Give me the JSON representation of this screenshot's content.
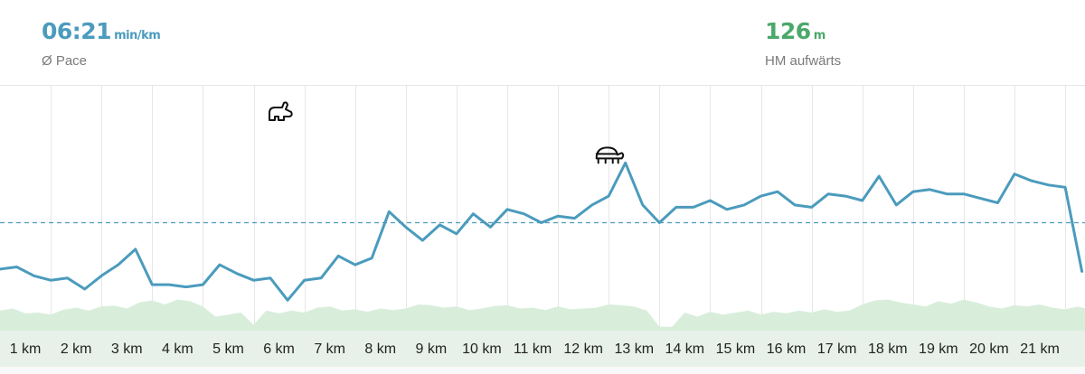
{
  "stats": {
    "pace": {
      "value": "06:21",
      "unit": "min/km",
      "label": "Ø Pace"
    },
    "elevation": {
      "value": "126",
      "unit": "m",
      "label": "HM aufwärts"
    }
  },
  "colors": {
    "pace_line": "#4b9bbd",
    "pace_text": "#4b9bbd",
    "elevation_text": "#4aa86a",
    "elevation_fill": "#d8eedb",
    "grid": "#e6e6e6",
    "axis_band": "#f4f4f4"
  },
  "icons": {
    "fastest": "rabbit-icon",
    "slowest": "turtle-icon"
  },
  "chart_data": {
    "type": "line",
    "title": "",
    "xlabel": "",
    "ylabel": "",
    "categories": [
      "1 km",
      "2 km",
      "3 km",
      "4 km",
      "5 km",
      "6 km",
      "7 km",
      "8 km",
      "9 km",
      "10 km",
      "11 km",
      "12 km",
      "13 km",
      "14 km",
      "15 km",
      "16 km",
      "17 km",
      "18 km",
      "19 km",
      "20 km",
      "21 km"
    ],
    "x_range_km": [
      0,
      21.4
    ],
    "grid": true,
    "average_line": "dashed",
    "series": [
      {
        "key": "pace",
        "x": [
          0,
          0.33,
          0.67,
          1.0,
          1.33,
          1.67,
          2.0,
          2.33,
          2.67,
          3.0,
          3.33,
          3.67,
          4.0,
          4.33,
          4.67,
          5.0,
          5.33,
          5.67,
          6.0,
          6.33,
          6.67,
          7.0,
          7.33,
          7.67,
          8.0,
          8.33,
          8.67,
          9.0,
          9.33,
          9.67,
          10.0,
          10.33,
          10.67,
          11.0,
          11.33,
          11.67,
          12.0,
          12.33,
          12.67,
          13.0,
          13.33,
          13.67,
          14.0,
          14.33,
          14.67,
          15.0,
          15.33,
          15.67,
          16.0,
          16.33,
          16.67,
          17.0,
          17.33,
          17.67,
          18.0,
          18.33,
          18.67,
          19.0,
          19.33,
          19.67,
          20.0,
          20.33,
          20.67,
          21.0,
          21.33
        ],
        "y": [
          0.29,
          0.3,
          0.26,
          0.24,
          0.25,
          0.2,
          0.26,
          0.31,
          0.38,
          0.22,
          0.22,
          0.21,
          0.22,
          0.31,
          0.27,
          0.24,
          0.25,
          0.15,
          0.24,
          0.25,
          0.35,
          0.31,
          0.34,
          0.55,
          0.48,
          0.42,
          0.49,
          0.45,
          0.54,
          0.48,
          0.56,
          0.54,
          0.5,
          0.53,
          0.52,
          0.58,
          0.62,
          0.77,
          0.58,
          0.5,
          0.57,
          0.57,
          0.6,
          0.56,
          0.58,
          0.62,
          0.64,
          0.58,
          0.57,
          0.63,
          0.62,
          0.6,
          0.71,
          0.58,
          0.64,
          0.65,
          0.63,
          0.63,
          0.61,
          0.59,
          0.72,
          0.69,
          0.67,
          0.66,
          0.28
        ]
      }
    ],
    "average_y": 0.5,
    "elevation": {
      "x": [
        0,
        0.25,
        0.5,
        0.75,
        1.0,
        1.25,
        1.5,
        1.75,
        2.0,
        2.25,
        2.5,
        2.75,
        3.0,
        3.25,
        3.5,
        3.75,
        4.0,
        4.25,
        4.5,
        4.75,
        5.0,
        5.25,
        5.5,
        5.75,
        6.0,
        6.25,
        6.5,
        6.75,
        7.0,
        7.25,
        7.5,
        7.75,
        8.0,
        8.25,
        8.5,
        8.75,
        9.0,
        9.25,
        9.5,
        9.75,
        10.0,
        10.25,
        10.5,
        10.75,
        11.0,
        11.25,
        11.5,
        11.75,
        12.0,
        12.25,
        12.5,
        12.75,
        13.0,
        13.25,
        13.5,
        13.75,
        14.0,
        14.25,
        14.5,
        14.75,
        15.0,
        15.25,
        15.5,
        15.75,
        16.0,
        16.25,
        16.5,
        16.75,
        17.0,
        17.25,
        17.5,
        17.75,
        18.0,
        18.25,
        18.5,
        18.75,
        19.0,
        19.25,
        19.5,
        19.75,
        20.0,
        20.25,
        20.5,
        20.75,
        21.0,
        21.25,
        21.4
      ],
      "y": [
        0.45,
        0.5,
        0.38,
        0.4,
        0.35,
        0.47,
        0.52,
        0.45,
        0.55,
        0.57,
        0.5,
        0.65,
        0.7,
        0.6,
        0.72,
        0.68,
        0.55,
        0.3,
        0.35,
        0.4,
        0.1,
        0.45,
        0.38,
        0.45,
        0.4,
        0.52,
        0.55,
        0.45,
        0.48,
        0.42,
        0.5,
        0.46,
        0.5,
        0.6,
        0.58,
        0.52,
        0.55,
        0.46,
        0.5,
        0.56,
        0.58,
        0.5,
        0.52,
        0.46,
        0.55,
        0.48,
        0.5,
        0.52,
        0.6,
        0.58,
        0.55,
        0.45,
        0.05,
        0.05,
        0.4,
        0.3,
        0.42,
        0.35,
        0.4,
        0.45,
        0.35,
        0.42,
        0.38,
        0.45,
        0.4,
        0.48,
        0.42,
        0.45,
        0.6,
        0.7,
        0.72,
        0.65,
        0.6,
        0.55,
        0.68,
        0.62,
        0.72,
        0.65,
        0.55,
        0.5,
        0.58,
        0.55,
        0.6,
        0.52,
        0.48,
        0.55,
        0.5
      ]
    }
  }
}
